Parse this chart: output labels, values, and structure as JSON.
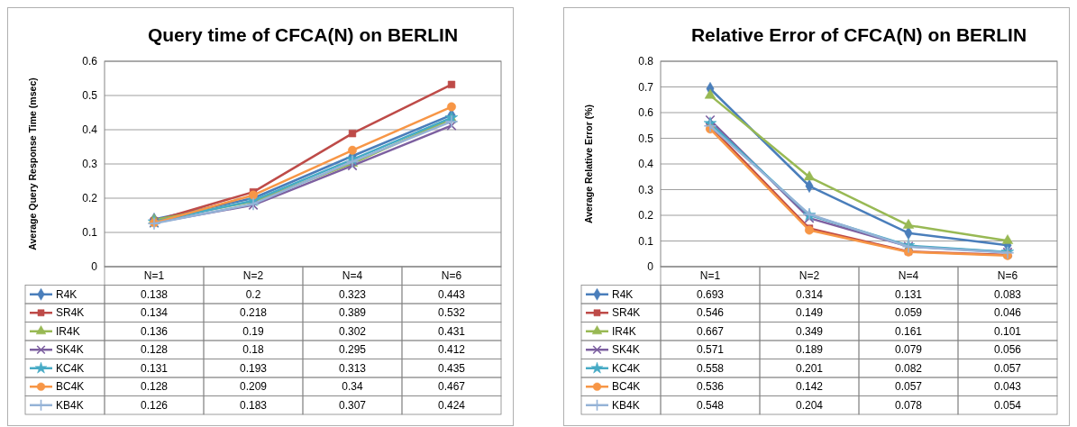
{
  "chart_data": [
    {
      "type": "line",
      "title": "Query time of CFCA(N) on BERLIN",
      "ylabel": "Average Query Response Time (msec)",
      "categories": [
        "N=1",
        "N=2",
        "N=4",
        "N=6"
      ],
      "ylim": [
        0,
        0.6
      ],
      "yticks": [
        0,
        0.1,
        0.2,
        0.3,
        0.4,
        0.5,
        0.6
      ],
      "grid": "y",
      "legend": "bottom",
      "data_labels": true,
      "series": [
        {
          "name": "R4K",
          "color": "#4a7ebb",
          "marker": "diamond",
          "values": [
            0.138,
            0.2,
            0.323,
            0.443
          ]
        },
        {
          "name": "SR4K",
          "color": "#be4b48",
          "marker": "square",
          "values": [
            0.134,
            0.218,
            0.389,
            0.532
          ]
        },
        {
          "name": "IR4K",
          "color": "#98b954",
          "marker": "triangle",
          "values": [
            0.136,
            0.19,
            0.302,
            0.431
          ]
        },
        {
          "name": "SK4K",
          "color": "#7d60a0",
          "marker": "cross",
          "values": [
            0.128,
            0.18,
            0.295,
            0.412
          ]
        },
        {
          "name": "KC4K",
          "color": "#46aac5",
          "marker": "star",
          "values": [
            0.131,
            0.193,
            0.313,
            0.435
          ]
        },
        {
          "name": "BC4K",
          "color": "#f79646",
          "marker": "circle",
          "values": [
            0.128,
            0.209,
            0.34,
            0.467
          ]
        },
        {
          "name": "KB4K",
          "color": "#95b3d7",
          "marker": "plus",
          "values": [
            0.126,
            0.183,
            0.307,
            0.424
          ]
        }
      ]
    },
    {
      "type": "line",
      "title": "Relative Error of CFCA(N) on BERLIN",
      "ylabel": "Average Relative Error (%)",
      "categories": [
        "N=1",
        "N=2",
        "N=4",
        "N=6"
      ],
      "ylim": [
        0,
        0.8
      ],
      "yticks": [
        0,
        0.1,
        0.2,
        0.3,
        0.4,
        0.5,
        0.6,
        0.7,
        0.8
      ],
      "grid": "y",
      "legend": "bottom",
      "data_labels": true,
      "series": [
        {
          "name": "R4K",
          "color": "#4a7ebb",
          "marker": "diamond",
          "values": [
            0.693,
            0.314,
            0.131,
            0.083
          ]
        },
        {
          "name": "SR4K",
          "color": "#be4b48",
          "marker": "square",
          "values": [
            0.546,
            0.149,
            0.059,
            0.046
          ]
        },
        {
          "name": "IR4K",
          "color": "#98b954",
          "marker": "triangle",
          "values": [
            0.667,
            0.349,
            0.161,
            0.101
          ]
        },
        {
          "name": "SK4K",
          "color": "#7d60a0",
          "marker": "cross",
          "values": [
            0.571,
            0.189,
            0.079,
            0.056
          ]
        },
        {
          "name": "KC4K",
          "color": "#46aac5",
          "marker": "star",
          "values": [
            0.558,
            0.201,
            0.082,
            0.057
          ]
        },
        {
          "name": "BC4K",
          "color": "#f79646",
          "marker": "circle",
          "values": [
            0.536,
            0.142,
            0.057,
            0.043
          ]
        },
        {
          "name": "KB4K",
          "color": "#95b3d7",
          "marker": "plus",
          "values": [
            0.548,
            0.204,
            0.078,
            0.054
          ]
        }
      ]
    }
  ]
}
